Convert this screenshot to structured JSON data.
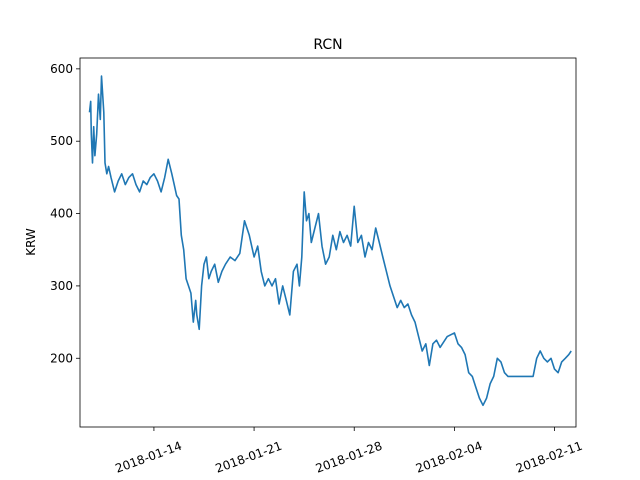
{
  "chart_data": {
    "type": "line",
    "title": "RCN",
    "xlabel": "",
    "ylabel": "KRW",
    "x_range": [
      "2018-01-08T20:00",
      "2018-02-12T12:00"
    ],
    "ylim": [
      105,
      615
    ],
    "x_ticks": [
      "2018-01-14",
      "2018-01-21",
      "2018-01-28",
      "2018-02-04",
      "2018-02-11"
    ],
    "y_ticks": [
      200,
      300,
      400,
      500,
      600
    ],
    "grid": false,
    "colors": {
      "line": "#1f77b4",
      "axes": "#000000",
      "background": "#ffffff"
    },
    "series": [
      {
        "x": [
          "2018-01-09T12:00",
          "2018-01-09T14:00",
          "2018-01-09T15:00",
          "2018-01-09T17:00",
          "2018-01-09T19:00",
          "2018-01-09T21:00",
          "2018-01-10T00:00",
          "2018-01-10T03:00",
          "2018-01-10T06:00",
          "2018-01-10T08:00",
          "2018-01-10T12:00",
          "2018-01-10T14:00",
          "2018-01-10T17:00",
          "2018-01-10T20:00",
          "2018-01-11T00:00",
          "2018-01-11T06:00",
          "2018-01-11T12:00",
          "2018-01-11T18:00",
          "2018-01-12T00:00",
          "2018-01-12T06:00",
          "2018-01-12T12:00",
          "2018-01-12T18:00",
          "2018-01-13T00:00",
          "2018-01-13T06:00",
          "2018-01-13T12:00",
          "2018-01-13T18:00",
          "2018-01-14T00:00",
          "2018-01-14T06:00",
          "2018-01-14T12:00",
          "2018-01-14T18:00",
          "2018-01-15T00:00",
          "2018-01-15T06:00",
          "2018-01-15T10:00",
          "2018-01-15T14:00",
          "2018-01-15T18:00",
          "2018-01-15T22:00",
          "2018-01-16T02:00",
          "2018-01-16T06:00",
          "2018-01-16T10:00",
          "2018-01-16T14:00",
          "2018-01-16T18:00",
          "2018-01-16T22:00",
          "2018-01-17T00:00",
          "2018-01-17T04:00",
          "2018-01-17T08:00",
          "2018-01-17T12:00",
          "2018-01-17T16:00",
          "2018-01-17T20:00",
          "2018-01-18T00:00",
          "2018-01-18T06:00",
          "2018-01-18T12:00",
          "2018-01-18T18:00",
          "2018-01-19T00:00",
          "2018-01-19T08:00",
          "2018-01-19T16:00",
          "2018-01-20T00:00",
          "2018-01-20T08:00",
          "2018-01-20T16:00",
          "2018-01-21T00:00",
          "2018-01-21T06:00",
          "2018-01-21T12:00",
          "2018-01-21T18:00",
          "2018-01-22T00:00",
          "2018-01-22T06:00",
          "2018-01-22T12:00",
          "2018-01-22T18:00",
          "2018-01-23T00:00",
          "2018-01-23T06:00",
          "2018-01-23T12:00",
          "2018-01-23T18:00",
          "2018-01-24T00:00",
          "2018-01-24T04:00",
          "2018-01-24T08:00",
          "2018-01-24T12:00",
          "2018-01-24T16:00",
          "2018-01-24T20:00",
          "2018-01-25T00:00",
          "2018-01-25T06:00",
          "2018-01-25T12:00",
          "2018-01-25T18:00",
          "2018-01-26T00:00",
          "2018-01-26T06:00",
          "2018-01-26T12:00",
          "2018-01-26T18:00",
          "2018-01-27T00:00",
          "2018-01-27T06:00",
          "2018-01-27T12:00",
          "2018-01-27T18:00",
          "2018-01-28T00:00",
          "2018-01-28T06:00",
          "2018-01-28T12:00",
          "2018-01-28T18:00",
          "2018-01-29T00:00",
          "2018-01-29T06:00",
          "2018-01-29T12:00",
          "2018-01-29T18:00",
          "2018-01-30T00:00",
          "2018-01-30T06:00",
          "2018-01-30T12:00",
          "2018-01-30T18:00",
          "2018-01-31T00:00",
          "2018-01-31T06:00",
          "2018-01-31T12:00",
          "2018-01-31T18:00",
          "2018-02-01T00:00",
          "2018-02-01T06:00",
          "2018-02-01T12:00",
          "2018-02-01T18:00",
          "2018-02-02T00:00",
          "2018-02-02T06:00",
          "2018-02-02T12:00",
          "2018-02-02T18:00",
          "2018-02-03T00:00",
          "2018-02-03T12:00",
          "2018-02-04T00:00",
          "2018-02-04T06:00",
          "2018-02-04T12:00",
          "2018-02-04T18:00",
          "2018-02-05T00:00",
          "2018-02-05T06:00",
          "2018-02-05T12:00",
          "2018-02-05T18:00",
          "2018-02-06T00:00",
          "2018-02-06T06:00",
          "2018-02-06T12:00",
          "2018-02-06T18:00",
          "2018-02-07T00:00",
          "2018-02-07T06:00",
          "2018-02-07T12:00",
          "2018-02-07T18:00",
          "2018-02-08T00:00",
          "2018-02-08T12:00",
          "2018-02-09T00:00",
          "2018-02-09T12:00",
          "2018-02-09T18:00",
          "2018-02-10T00:00",
          "2018-02-10T06:00",
          "2018-02-10T12:00",
          "2018-02-10T18:00",
          "2018-02-11T00:00",
          "2018-02-11T06:00",
          "2018-02-11T12:00",
          "2018-02-11T18:00",
          "2018-02-12T00:00",
          "2018-02-12T04:00"
        ],
        "y": [
          540,
          555,
          510,
          470,
          520,
          480,
          510,
          565,
          530,
          590,
          540,
          470,
          455,
          465,
          450,
          430,
          445,
          455,
          440,
          450,
          455,
          440,
          430,
          445,
          440,
          450,
          455,
          445,
          430,
          450,
          475,
          455,
          440,
          425,
          420,
          370,
          350,
          310,
          300,
          290,
          250,
          280,
          260,
          240,
          300,
          330,
          340,
          310,
          320,
          330,
          305,
          320,
          330,
          340,
          335,
          345,
          390,
          370,
          340,
          355,
          320,
          300,
          310,
          300,
          310,
          275,
          300,
          280,
          260,
          320,
          330,
          300,
          340,
          430,
          390,
          400,
          360,
          380,
          400,
          355,
          330,
          340,
          370,
          350,
          375,
          360,
          370,
          355,
          410,
          360,
          370,
          340,
          360,
          350,
          380,
          360,
          340,
          320,
          300,
          285,
          270,
          280,
          270,
          275,
          260,
          250,
          230,
          210,
          220,
          190,
          220,
          225,
          215,
          230,
          235,
          220,
          215,
          205,
          180,
          175,
          160,
          145,
          135,
          145,
          165,
          175,
          200,
          195,
          180,
          175,
          175,
          175,
          175,
          175,
          200,
          210,
          200,
          195,
          200,
          185,
          180,
          195,
          200,
          205,
          210
        ]
      }
    ]
  }
}
